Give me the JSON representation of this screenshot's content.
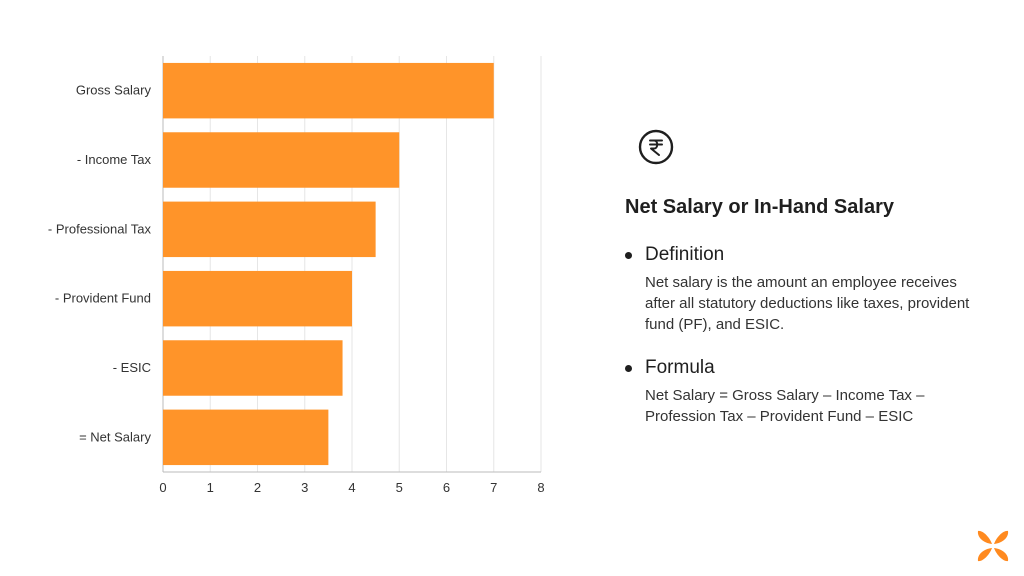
{
  "chart_data": {
    "type": "bar",
    "orientation": "horizontal",
    "categories": [
      "Gross Salary",
      "- Income Tax",
      "- Professional Tax",
      "- Provident Fund",
      "- ESIC",
      "= Net Salary"
    ],
    "values": [
      7,
      5,
      4.5,
      4,
      3.8,
      3.5
    ],
    "xlim": [
      0,
      8
    ],
    "xticks": [
      "0",
      "1",
      "2",
      "3",
      "4",
      "5",
      "6",
      "7",
      "8"
    ],
    "grid": true,
    "bar_color": "#FF9429",
    "title": "",
    "xlabel": "",
    "ylabel": ""
  },
  "panel": {
    "icon": "rupee-icon",
    "title": "Net Salary or In-Hand Salary",
    "definition": {
      "heading": "Definition",
      "body": "Net salary is the amount an employee receives after all statutory deductions like taxes, provident fund (PF), and ESIC."
    },
    "formula": {
      "heading": "Formula",
      "body": "Net Salary = Gross Salary – Income Tax – Profession Tax – Provident Fund – ESIC"
    }
  },
  "brand": {
    "icon": "brand-logo-icon",
    "color": "#FF8A1F"
  }
}
